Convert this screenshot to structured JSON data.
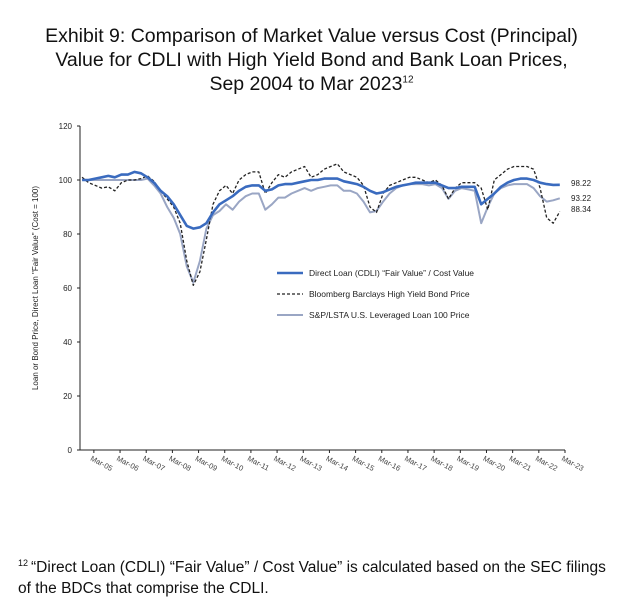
{
  "title_lines": [
    "Exhibit 9: Comparison of Market Value versus Cost (Principal)",
    "Value for CDLI with High Yield Bond and Bank Loan Prices,",
    "Sep 2004 to Mar 2023"
  ],
  "title_footnote_mark": "12",
  "footnote": {
    "mark": "12",
    "text": "“Direct Loan (CDLI) “Fair Value” / Cost Value” is calculated based on the SEC filings of the BDCs that comprise the CDLI."
  },
  "colors": {
    "cdli": "#3a6bbf",
    "high_yield": "#222222",
    "leveraged_loan": "#9aa6c4",
    "axis": "#222222"
  },
  "chart_data": {
    "type": "line",
    "title": "",
    "ylabel": "Loan or Bond Price, Direct Loan \"Fair Value\" (Cost = 100)",
    "xlabel": "",
    "ylim": [
      0,
      120
    ],
    "xlim": [
      2004.67,
      2023.2
    ],
    "y_ticks": [
      "0",
      "20",
      "40",
      "60",
      "80",
      "100",
      "120"
    ],
    "x_ticks": [
      "Mar-05",
      "Mar-06",
      "Mar-07",
      "Mar-08",
      "Mar-09",
      "Mar-10",
      "Mar-11",
      "Mar-12",
      "Mar-13",
      "Mar-14",
      "Mar-15",
      "Mar-16",
      "Mar-17",
      "Mar-18",
      "Mar-19",
      "Mar-20",
      "Mar-21",
      "Mar-22",
      "Mar-23"
    ],
    "legend": "center-right",
    "grid": false,
    "end_labels": [
      "98.22",
      "93.22",
      "88.34"
    ],
    "series": [
      {
        "name": "Direct Loan (CDLI) “Fair Value” / Cost Value",
        "style": "solid",
        "x": [
          2004.75,
          2005.0,
          2005.25,
          2005.5,
          2005.75,
          2006.0,
          2006.25,
          2006.5,
          2006.75,
          2007.0,
          2007.25,
          2007.5,
          2007.75,
          2008.0,
          2008.25,
          2008.5,
          2008.75,
          2009.0,
          2009.25,
          2009.5,
          2009.75,
          2010.0,
          2010.25,
          2010.5,
          2010.75,
          2011.0,
          2011.25,
          2011.5,
          2011.75,
          2012.0,
          2012.25,
          2012.5,
          2012.75,
          2013.0,
          2013.25,
          2013.5,
          2013.75,
          2014.0,
          2014.25,
          2014.5,
          2014.75,
          2015.0,
          2015.25,
          2015.5,
          2015.75,
          2016.0,
          2016.25,
          2016.5,
          2016.75,
          2017.0,
          2017.25,
          2017.5,
          2017.75,
          2018.0,
          2018.25,
          2018.5,
          2018.75,
          2019.0,
          2019.25,
          2019.5,
          2019.75,
          2020.0,
          2020.25,
          2020.5,
          2020.75,
          2021.0,
          2021.25,
          2021.5,
          2021.75,
          2022.0,
          2022.25,
          2022.5,
          2022.75,
          2023.0
        ],
        "y": [
          100,
          100,
          100.5,
          101,
          101.5,
          101,
          102,
          102,
          103,
          102.5,
          101,
          99,
          96,
          94,
          91,
          87,
          83,
          82,
          82.5,
          84,
          88,
          91,
          92.5,
          94,
          96,
          97.5,
          98,
          98,
          96,
          96.5,
          98,
          98.5,
          98.5,
          99,
          99.5,
          100,
          100,
          100.5,
          100.5,
          100.5,
          99.5,
          99,
          98.5,
          97.5,
          96,
          95,
          95.5,
          96.5,
          97.5,
          98,
          98.5,
          99,
          99,
          99,
          99,
          98,
          97,
          97,
          97.5,
          97.5,
          97.5,
          91,
          93,
          95,
          97.5,
          99,
          100,
          100.5,
          100.5,
          100,
          99,
          98.5,
          98.2,
          98.22
        ]
      },
      {
        "name": "Bloomberg Barclays High Yield Bond Price",
        "style": "dashed",
        "x": [
          2004.75,
          2005.0,
          2005.25,
          2005.5,
          2005.75,
          2006.0,
          2006.25,
          2006.5,
          2006.75,
          2007.0,
          2007.25,
          2007.5,
          2007.75,
          2008.0,
          2008.25,
          2008.5,
          2008.75,
          2009.0,
          2009.25,
          2009.5,
          2009.75,
          2010.0,
          2010.25,
          2010.5,
          2010.75,
          2011.0,
          2011.25,
          2011.5,
          2011.75,
          2012.0,
          2012.25,
          2012.5,
          2012.75,
          2013.0,
          2013.25,
          2013.5,
          2013.75,
          2014.0,
          2014.25,
          2014.5,
          2014.75,
          2015.0,
          2015.25,
          2015.5,
          2015.75,
          2016.0,
          2016.25,
          2016.5,
          2016.75,
          2017.0,
          2017.25,
          2017.5,
          2017.75,
          2018.0,
          2018.25,
          2018.5,
          2018.75,
          2019.0,
          2019.25,
          2019.5,
          2019.75,
          2020.0,
          2020.25,
          2020.5,
          2020.75,
          2021.0,
          2021.25,
          2021.5,
          2021.75,
          2022.0,
          2022.25,
          2022.5,
          2022.75,
          2023.0
        ],
        "y": [
          101,
          99,
          98,
          97,
          97.5,
          96,
          99,
          100,
          100,
          100.5,
          101.5,
          99.5,
          96,
          93,
          90,
          84,
          70,
          61,
          66,
          78,
          91,
          96,
          98,
          95,
          100,
          102,
          103,
          103,
          95,
          99,
          102,
          101,
          103,
          104,
          105,
          101,
          102,
          104,
          105,
          106,
          103,
          102,
          101,
          98,
          90,
          88,
          95,
          98,
          99,
          100,
          101,
          101,
          100,
          99,
          100,
          98,
          93,
          97,
          99,
          99,
          99,
          97,
          89,
          100,
          102,
          104,
          105,
          105,
          105,
          104,
          97,
          86,
          84,
          88.34
        ]
      },
      {
        "name": "S&P/LSTA U.S. Leveraged Loan 100 Price",
        "style": "solid",
        "x": [
          2004.75,
          2005.0,
          2005.25,
          2005.5,
          2005.75,
          2006.0,
          2006.25,
          2006.5,
          2006.75,
          2007.0,
          2007.25,
          2007.5,
          2007.75,
          2008.0,
          2008.25,
          2008.5,
          2008.75,
          2009.0,
          2009.25,
          2009.5,
          2009.75,
          2010.0,
          2010.25,
          2010.5,
          2010.75,
          2011.0,
          2011.25,
          2011.5,
          2011.75,
          2012.0,
          2012.25,
          2012.5,
          2012.75,
          2013.0,
          2013.25,
          2013.5,
          2013.75,
          2014.0,
          2014.25,
          2014.5,
          2014.75,
          2015.0,
          2015.25,
          2015.5,
          2015.75,
          2016.0,
          2016.25,
          2016.5,
          2016.75,
          2017.0,
          2017.25,
          2017.5,
          2017.75,
          2018.0,
          2018.25,
          2018.5,
          2018.75,
          2019.0,
          2019.25,
          2019.5,
          2019.75,
          2020.0,
          2020.25,
          2020.5,
          2020.75,
          2021.0,
          2021.25,
          2021.5,
          2021.75,
          2022.0,
          2022.25,
          2022.5,
          2022.75,
          2023.0
        ],
        "y": [
          100,
          100,
          100,
          100,
          100,
          100,
          100,
          100,
          100,
          100,
          100.5,
          98,
          95,
          90,
          86,
          80,
          68,
          62,
          70,
          82,
          87,
          88.5,
          91,
          89,
          92,
          94,
          95,
          95,
          89,
          91,
          93.5,
          93.5,
          95,
          96,
          97,
          96,
          97,
          97.5,
          98,
          98,
          96,
          96,
          95,
          92,
          88,
          88.5,
          92,
          95,
          97,
          98,
          98.5,
          98.5,
          98.5,
          98,
          98.5,
          97,
          93,
          96,
          97,
          96.5,
          96,
          84,
          90,
          95,
          97,
          98,
          98.5,
          98.5,
          98.5,
          97,
          94,
          92,
          92.5,
          93.22
        ]
      }
    ]
  }
}
